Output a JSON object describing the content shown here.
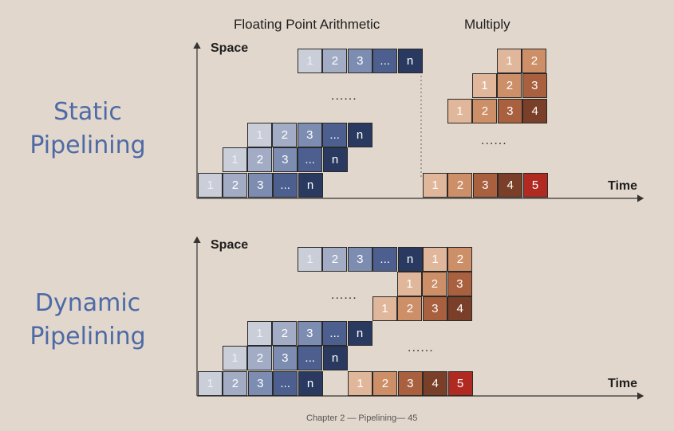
{
  "headers": {
    "fp": "Floating Point Arithmetic",
    "mul": "Multiply"
  },
  "static": {
    "title_line1": "Static",
    "title_line2": "Pipelining"
  },
  "dynamic": {
    "title_line1": "Dynamic",
    "title_line2": "Pipelining"
  },
  "axis": {
    "space": "Space",
    "time": "Time"
  },
  "fp_labels": [
    "1",
    "2",
    "3",
    "...",
    "n"
  ],
  "mul_labels": [
    "1",
    "2",
    "3",
    "4",
    "5"
  ],
  "ellipsis": "......",
  "footer": "Chapter 2 — Pipelining— 45"
}
